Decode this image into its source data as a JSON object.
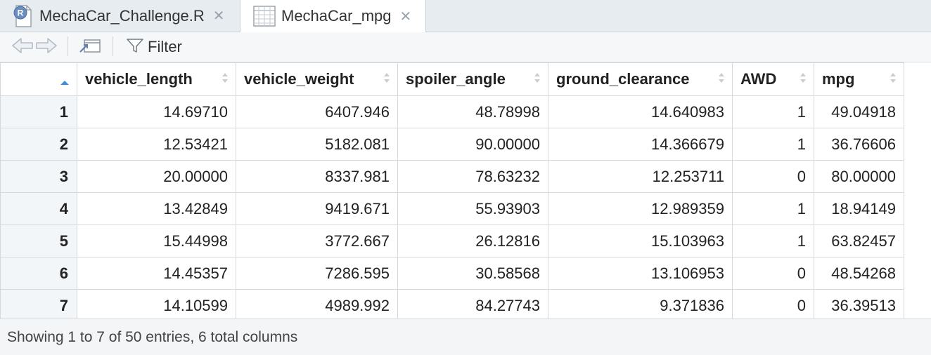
{
  "tabs": [
    {
      "label": "MechaCar_Challenge.R",
      "icon": "r-file-icon"
    },
    {
      "label": "MechaCar_mpg",
      "icon": "data-grid-icon"
    }
  ],
  "toolbar": {
    "filter_label": "Filter"
  },
  "table": {
    "columns": [
      "vehicle_length",
      "vehicle_weight",
      "spoiler_angle",
      "ground_clearance",
      "AWD",
      "mpg"
    ],
    "rows": [
      {
        "n": "1",
        "cells": [
          "14.69710",
          "6407.946",
          "48.78998",
          "14.640983",
          "1",
          "49.04918"
        ]
      },
      {
        "n": "2",
        "cells": [
          "12.53421",
          "5182.081",
          "90.00000",
          "14.366679",
          "1",
          "36.76606"
        ]
      },
      {
        "n": "3",
        "cells": [
          "20.00000",
          "8337.981",
          "78.63232",
          "12.253711",
          "0",
          "80.00000"
        ]
      },
      {
        "n": "4",
        "cells": [
          "13.42849",
          "9419.671",
          "55.93903",
          "12.989359",
          "1",
          "18.94149"
        ]
      },
      {
        "n": "5",
        "cells": [
          "15.44998",
          "3772.667",
          "26.12816",
          "15.103963",
          "1",
          "63.82457"
        ]
      },
      {
        "n": "6",
        "cells": [
          "14.45357",
          "7286.595",
          "30.58568",
          "13.106953",
          "0",
          "48.54268"
        ]
      },
      {
        "n": "7",
        "cells": [
          "14.10599",
          "4989.992",
          "84.27743",
          "9.371836",
          "0",
          "36.39513"
        ]
      }
    ]
  },
  "status": {
    "text": "Showing 1 to 7 of 50 entries, 6 total columns"
  },
  "colors": {
    "accent": "#3b8ee0",
    "tab_bg": "#e7ecf0",
    "header_bg": "#ffffff"
  }
}
